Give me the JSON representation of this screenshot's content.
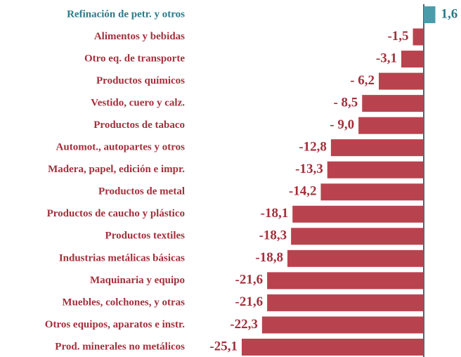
{
  "chart_data": {
    "type": "barh",
    "categories": [
      "Refinación de petr. y otros",
      "Alimentos y bebidas",
      "Otro eq. de transporte",
      "Productos químicos",
      "Vestido, cuero y calz.",
      "Productos de tabaco",
      "Automot., autopartes y otros",
      "Madera, papel, edición e impr.",
      "Productos de metal",
      "Productos de caucho y plástico",
      "Productos textiles",
      "Industrias metálicas básicas",
      "Maquinaria y equipo",
      "Muebles, colchones, y otras",
      "Otros equipos, aparatos e instr.",
      "Prod. minerales no metálicos"
    ],
    "values": [
      1.6,
      -1.5,
      -3.1,
      -6.2,
      -8.5,
      -9.0,
      -12.8,
      -13.3,
      -14.2,
      -18.1,
      -18.3,
      -18.8,
      -21.6,
      -21.6,
      -22.3,
      -25.1
    ],
    "value_labels": [
      "1,6",
      "-1,5",
      "-3,1",
      "- 6,2",
      "- 8,5",
      "- 9,0",
      "-12,8",
      "-13,3",
      "-14,2",
      "-18,1",
      "-18,3",
      "-18,8",
      "-21,6",
      "-21,6",
      "-22,3",
      "-25,1"
    ],
    "positive_color": "#4a9cab",
    "negative_color": "#b8434e",
    "positive_label_color": "#2b7a8a",
    "negative_label_color": "#a3303c"
  }
}
